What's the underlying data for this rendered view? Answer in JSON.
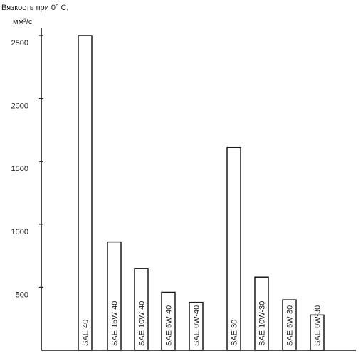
{
  "chart_data": {
    "type": "bar",
    "ylabel_line1": "Вязкость при 0° С,",
    "ylabel_line2": "мм²/с",
    "ylim": [
      0,
      2500
    ],
    "yticks": [
      500,
      1000,
      1500,
      2000,
      2500
    ],
    "categories": [
      "SAE 40",
      "SAE 15W-40",
      "SAE 10W-40",
      "SAE 5W-40",
      "SAE 0W-40",
      "SAE 30",
      "SAE 10W-30",
      "SAE 5W-30",
      "SAE 0W-30"
    ],
    "values": [
      2500,
      860,
      650,
      460,
      380,
      1610,
      580,
      400,
      280
    ],
    "grid": false,
    "legend": "none"
  },
  "colors": {
    "ink": "#1a1a1a",
    "background": "#ffffff"
  }
}
